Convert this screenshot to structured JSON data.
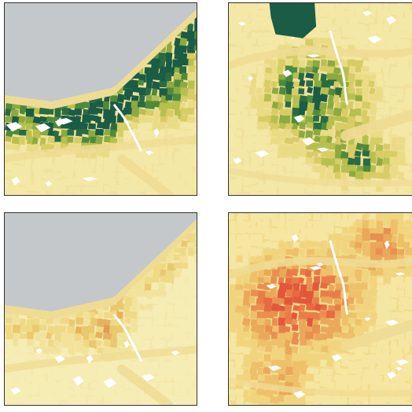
{
  "maps": [
    {
      "id": "lakeshore-green",
      "region": "lakeshore",
      "palette": "green",
      "seed": 11,
      "colors": {
        "water": "#c4c8ca",
        "base": "#f1e29b",
        "shore": "#efdc94",
        "empty": "#ffffff",
        "ramp": [
          "#f4e8a6",
          "#eadc85",
          "#d8cc65",
          "#b7c04f",
          "#8caa3f",
          "#4e8a3c",
          "#2a6b43",
          "#1a5c45"
        ]
      }
    },
    {
      "id": "city-green",
      "region": "city",
      "palette": "green",
      "seed": 23,
      "colors": {
        "water": "#c4c8ca",
        "base": "#f0e09a",
        "shore": "#efdc94",
        "empty": "#ffffff",
        "ramp": [
          "#f4e8a6",
          "#eadc85",
          "#d8cc65",
          "#b7c04f",
          "#8caa3f",
          "#4e8a3c",
          "#2a6b43",
          "#1a5c45"
        ]
      }
    },
    {
      "id": "lakeshore-orange",
      "region": "lakeshore",
      "palette": "orange",
      "seed": 37,
      "colors": {
        "water": "#c4c8ca",
        "base": "#f4e8ab",
        "shore": "#efdc94",
        "empty": "#ffffff",
        "ramp": [
          "#f6edb5",
          "#f2e39c",
          "#efd985",
          "#eac86f",
          "#e6b25d",
          "#e49955",
          "#e6824c",
          "#e56c42"
        ]
      }
    },
    {
      "id": "city-orange",
      "region": "city",
      "palette": "orange",
      "seed": 51,
      "colors": {
        "water": "#c4c8ca",
        "base": "#f2dc8a",
        "shore": "#efdc94",
        "empty": "#ffffff",
        "ramp": [
          "#f5e6a2",
          "#f1d47e",
          "#eec06a",
          "#eaa85a",
          "#e89050",
          "#e97d49",
          "#e86a42",
          "#e3573b"
        ]
      }
    }
  ]
}
